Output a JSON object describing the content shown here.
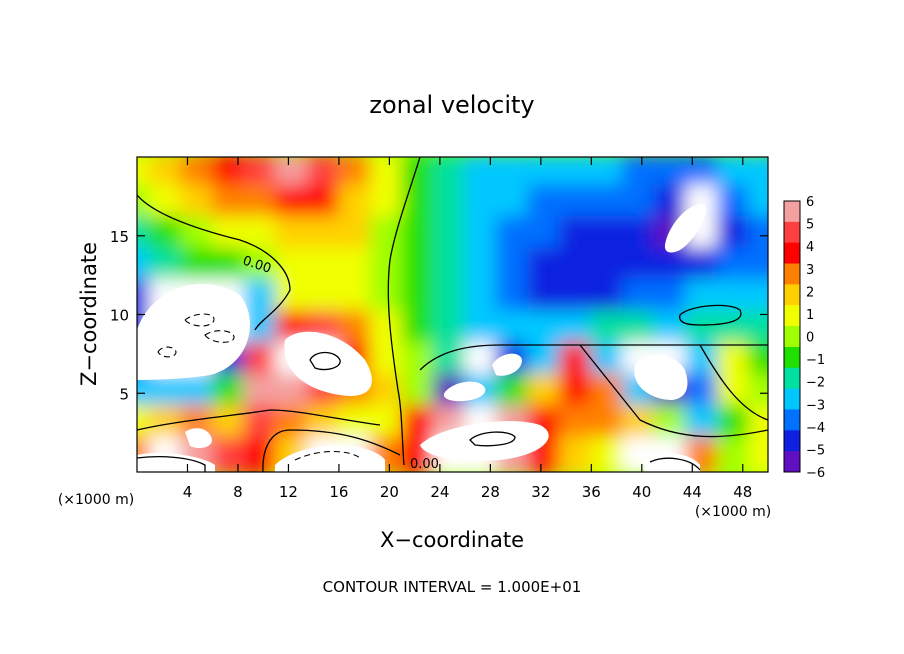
{
  "chart_data": {
    "type": "heatmap",
    "title": "zonal velocity",
    "xlabel": "X−coordinate",
    "ylabel": "Z−coordinate",
    "x_unit": "(×1000 m)",
    "y_unit": "(×1000 m)",
    "xlim": [
      0,
      50
    ],
    "ylim": [
      0,
      20
    ],
    "x_ticks": [
      4,
      8,
      12,
      16,
      20,
      24,
      28,
      32,
      36,
      40,
      44,
      48
    ],
    "y_ticks": [
      5,
      10,
      15
    ],
    "colorbar": {
      "min": -6,
      "max": 6,
      "ticks": [
        "6",
        "5",
        "4",
        "3",
        "2",
        "1",
        "0",
        "−1",
        "−2",
        "−3",
        "−4",
        "−5",
        "−6"
      ],
      "colors": [
        "#f4a0a0",
        "#ff4040",
        "#ff0000",
        "#ff8000",
        "#ffd000",
        "#f0ff00",
        "#a0ff00",
        "#20e000",
        "#00e0a0",
        "#00c8ff",
        "#0070ff",
        "#1020e0",
        "#6010c0"
      ]
    },
    "values_by_row_description": "z from top (20) to bottom (0), x from 0 to 50",
    "field": {
      "x": [
        0,
        2.5,
        5,
        7.5,
        10,
        12.5,
        15,
        17.5,
        20,
        22.5,
        25,
        27.5,
        30,
        32.5,
        35,
        37.5,
        40,
        42.5,
        45,
        47.5,
        50
      ],
      "z": [
        19,
        17,
        15,
        13,
        11,
        9,
        7,
        5,
        3,
        1
      ],
      "values": [
        [
          1,
          2,
          3,
          4,
          5,
          6,
          5,
          3,
          1,
          -1,
          -2,
          -3,
          -3,
          -3,
          -3,
          -3,
          -4,
          -4,
          -4,
          -3,
          -3
        ],
        [
          0,
          1,
          2,
          3,
          3,
          4,
          4,
          2,
          1,
          -1,
          -2,
          -3,
          -3,
          -4,
          -4,
          -4,
          -4,
          -5,
          -7,
          -4,
          -3
        ],
        [
          -2,
          -1,
          0,
          1,
          1,
          2,
          2,
          2,
          0,
          -1,
          -2,
          -3,
          -4,
          -4,
          -5,
          -5,
          -5,
          -6,
          -7,
          -5,
          -4
        ],
        [
          -3,
          -2,
          -1,
          -1,
          0,
          1,
          1,
          1,
          0,
          -1,
          -2,
          -3,
          -4,
          -5,
          -5,
          -5,
          -5,
          -5,
          -5,
          -4,
          -4
        ],
        [
          -5,
          -7,
          -7,
          -7,
          -3,
          1,
          1,
          1,
          0,
          -1,
          -2,
          -3,
          -4,
          -5,
          -5,
          -5,
          -4,
          -4,
          -3,
          -3,
          -3
        ],
        [
          -5,
          -7,
          -7,
          -7,
          -3,
          4,
          5,
          3,
          1,
          -1,
          -2,
          -3,
          -3,
          -3,
          -3,
          -2,
          -2,
          -3,
          -2,
          -2,
          -2
        ],
        [
          -4,
          -7,
          -7,
          -5,
          5,
          7,
          7,
          4,
          1,
          0,
          -2,
          -7,
          -5,
          -3,
          4,
          -3,
          -7,
          -7,
          -3,
          1,
          -1
        ],
        [
          -3,
          -3,
          -3,
          -1,
          6,
          6,
          5,
          3,
          2,
          0,
          -6,
          -3,
          -1,
          2,
          4,
          3,
          -3,
          -6,
          -4,
          1,
          0
        ],
        [
          1,
          2,
          3,
          2,
          5,
          3,
          2,
          1,
          1,
          4,
          6,
          7,
          6,
          4,
          3,
          3,
          2,
          0,
          -3,
          -1,
          1
        ],
        [
          3,
          7,
          6,
          5,
          4,
          2,
          7,
          7,
          3,
          4,
          7,
          7,
          6,
          4,
          2,
          1,
          7,
          7,
          3,
          0,
          1
        ]
      ]
    },
    "contour_labels": [
      "0.00",
      "0.00"
    ],
    "footer": "CONTOUR INTERVAL = 1.000E+01"
  }
}
